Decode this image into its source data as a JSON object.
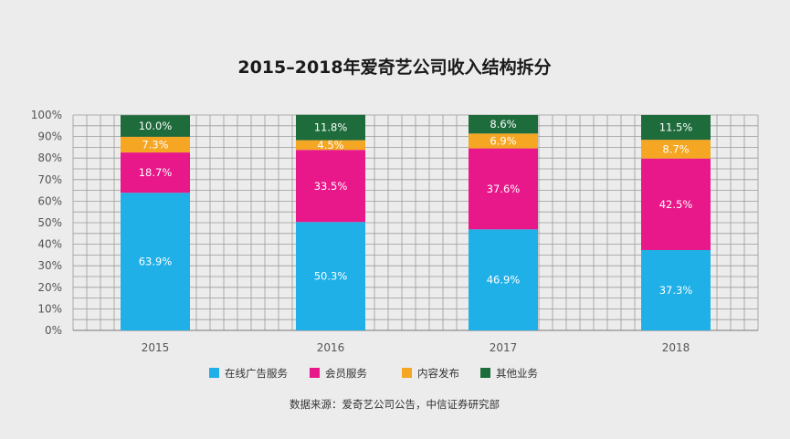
{
  "chart_data": {
    "type": "bar",
    "stacked": true,
    "title": "2015–2018年爱奇艺公司收入结构拆分",
    "categories": [
      "2015",
      "2016",
      "2017",
      "2018"
    ],
    "series": [
      {
        "name": "在线广告服务",
        "color": "#1fb0e8",
        "values": [
          63.9,
          50.3,
          46.9,
          37.3
        ],
        "labels": [
          "63.9%",
          "50.3%",
          "46.9%",
          "37.3%"
        ]
      },
      {
        "name": "会员服务",
        "color": "#e8178a",
        "values": [
          18.7,
          33.5,
          37.6,
          42.5
        ],
        "labels": [
          "18.7%",
          "33.5%",
          "37.6%",
          "42.5%"
        ]
      },
      {
        "name": "内容发布",
        "color": "#f5a623",
        "values": [
          7.3,
          4.5,
          6.9,
          8.7
        ],
        "labels": [
          "7.3%",
          "4.5%",
          "6.9%",
          "8.7%"
        ]
      },
      {
        "name": "其他业务",
        "color": "#1e6b3c",
        "values": [
          10.0,
          11.8,
          8.6,
          11.5
        ],
        "labels": [
          "10.0%",
          "11.8%",
          "8.6%",
          "11.5%"
        ]
      }
    ],
    "yticks": [
      "0%",
      "10%",
      "20%",
      "30%",
      "40%",
      "50%",
      "60%",
      "70%",
      "80%",
      "90%",
      "100%"
    ],
    "ylim": [
      0,
      100
    ],
    "grid": true,
    "legend_position": "bottom"
  },
  "source_text": "数据来源：爱奇艺公司公告，中信证券研究部"
}
